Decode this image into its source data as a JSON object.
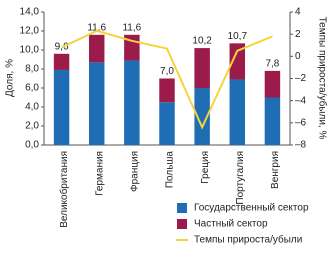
{
  "chart_data": {
    "type": "bar",
    "stacked": true,
    "y_label": "Доля, %",
    "y2_label": "Темпы прироста/убыли, %",
    "categories": [
      "Великобритания",
      "Германия",
      "Франция",
      "Польша",
      "Греция",
      "Португалия",
      "Венгрия"
    ],
    "series": [
      {
        "name": "Государственный сектор",
        "color": "#1f6db5",
        "values": [
          7.9,
          8.7,
          8.9,
          4.5,
          6.0,
          6.9,
          5.0
        ]
      },
      {
        "name": "Частный сектор",
        "color": "#9b1b4a",
        "values": [
          1.7,
          2.9,
          2.7,
          2.5,
          4.2,
          3.8,
          2.8
        ]
      },
      {
        "name": "Темпы прироста/убыли",
        "color": "#f5d43b",
        "type": "line",
        "axis": "y2",
        "values": [
          0.8,
          2.3,
          1.4,
          0.7,
          -6.4,
          0.5,
          1.8
        ]
      }
    ],
    "totals": [
      9.6,
      11.6,
      11.6,
      7.0,
      10.2,
      10.7,
      7.8
    ],
    "total_labels": [
      "9,6",
      "11,6",
      "11,6",
      "7,0",
      "10,2",
      "10,7",
      "7,8"
    ],
    "ylim": [
      0,
      14
    ],
    "yticks": [
      {
        "value": 0,
        "label": "0,0"
      },
      {
        "value": 2,
        "label": "2,0"
      },
      {
        "value": 4,
        "label": "4,0"
      },
      {
        "value": 6,
        "label": "6,0"
      },
      {
        "value": 8,
        "label": "8,0"
      },
      {
        "value": 10,
        "label": "10,0"
      },
      {
        "value": 12,
        "label": "12,0"
      },
      {
        "value": 14,
        "label": "14,0"
      }
    ],
    "y2lim": [
      -8,
      4
    ],
    "y2ticks": [
      {
        "value": -8,
        "label": "–8"
      },
      {
        "value": -6,
        "label": "–6"
      },
      {
        "value": -4,
        "label": "–4"
      },
      {
        "value": -2,
        "label": "–2"
      },
      0,
      2,
      4
    ],
    "grid": false,
    "legend": "bottom-right"
  }
}
